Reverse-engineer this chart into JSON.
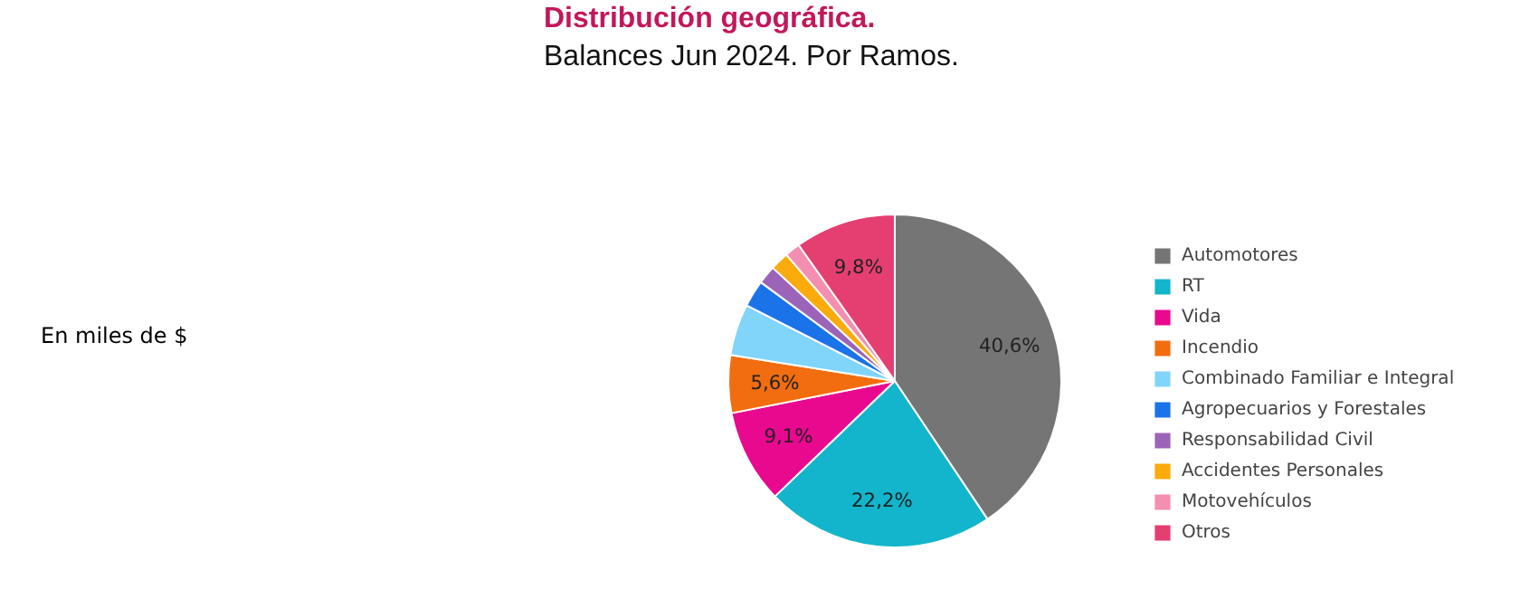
{
  "chart_data": {
    "type": "pie",
    "title": "Distribución geográfica.",
    "subtitle": "Balances Jun 2024. Por Ramos.",
    "annotations": [
      "En miles de $"
    ],
    "categories": [
      "Automotores",
      "RT",
      "Vida",
      "Incendio",
      "Combinado Familiar e Integral",
      "Agropecuarios y Forestales",
      "Responsabilidad Civil",
      "Accidentes Personales",
      "Motovehículos",
      "Otros"
    ],
    "values": [
      40.6,
      22.2,
      9.1,
      5.6,
      5.0,
      2.6,
      1.8,
      1.8,
      1.5,
      9.8
    ],
    "colors": [
      "#757575",
      "#12b5cb",
      "#e8098f",
      "#f26d0f",
      "#81d4fa",
      "#1a73e8",
      "#9c64b8",
      "#fbab0c",
      "#f48fb1",
      "#e53f71"
    ],
    "value_labels": [
      "40,6%",
      "22,2%",
      "9,1%",
      "5,6%",
      null,
      null,
      null,
      null,
      null,
      "9,8%"
    ],
    "legend": "right"
  }
}
